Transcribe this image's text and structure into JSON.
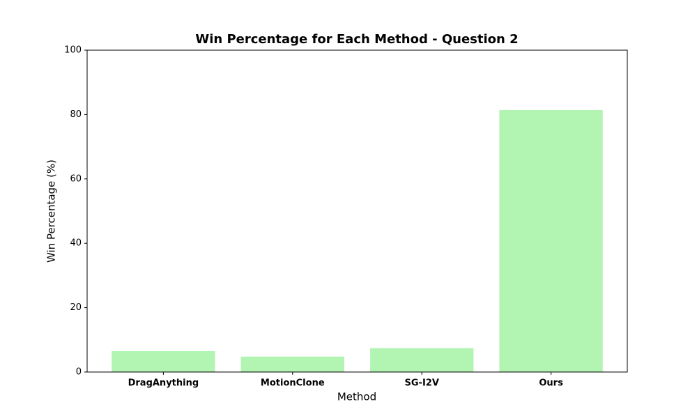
{
  "chart_data": {
    "type": "bar",
    "title": "Win Percentage for Each Method - Question 2",
    "x_label": "Method",
    "y_label": "Win Percentage (%)",
    "categories": [
      "DragAnything",
      "MotionClone",
      "SG-I2V",
      "Ours"
    ],
    "values": [
      6.5,
      4.8,
      7.4,
      81.4
    ],
    "color": "#b2f4b2",
    "ylim": [
      0,
      100
    ],
    "yticks": [
      0,
      20,
      40,
      60,
      80,
      100
    ],
    "grid": false
  }
}
